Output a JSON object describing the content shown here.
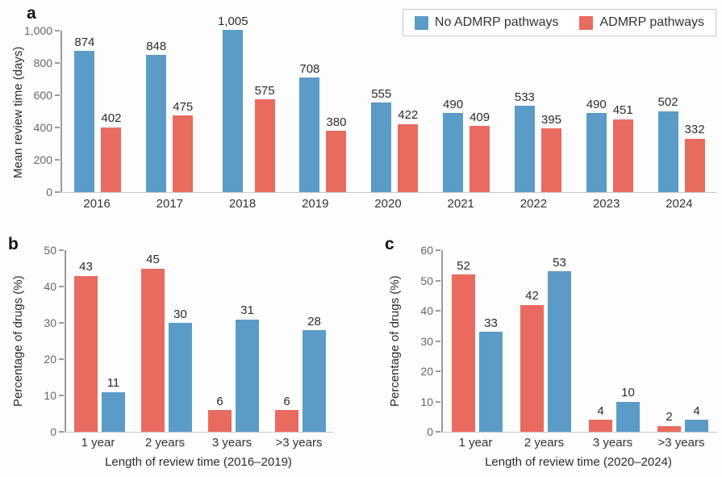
{
  "colors": {
    "no_admrp": "#5b9bc8",
    "admrp": "#e96a5f",
    "axis_line": "#9a9a9a",
    "baseline": "#c9c9c9",
    "tick_text": "#666666",
    "label_text": "#2b2b2b"
  },
  "legend": {
    "items": [
      {
        "label": "No ADMRP pathways",
        "color_key": "no_admrp"
      },
      {
        "label": "ADMRP pathways",
        "color_key": "admrp"
      }
    ]
  },
  "chart_data": [
    {
      "type": "bar",
      "panel": "a",
      "title": "",
      "xlabel": "",
      "ylabel": "Mean review time (days)",
      "ylim": [
        0,
        1000
      ],
      "ytick_step": 200,
      "ytick_labels": [
        "1,000",
        "800",
        "600",
        "400",
        "200",
        "0"
      ],
      "grid": false,
      "legend_position": "top-right",
      "categories": [
        "2016",
        "2017",
        "2018",
        "2019",
        "2020",
        "2021",
        "2022",
        "2023",
        "2024"
      ],
      "series": [
        {
          "name": "No ADMRP pathways",
          "color_key": "no_admrp",
          "values": [
            874,
            848,
            1005,
            708,
            555,
            490,
            533,
            490,
            502
          ]
        },
        {
          "name": "ADMRP pathways",
          "color_key": "admrp",
          "values": [
            402,
            475,
            575,
            380,
            422,
            409,
            395,
            451,
            332
          ]
        }
      ]
    },
    {
      "type": "bar",
      "panel": "b",
      "title": "",
      "xlabel": "Length of review time (2016–2019)",
      "ylabel": "Percentage of drugs (%)",
      "ylim": [
        0,
        50
      ],
      "ytick_step": 10,
      "ytick_labels": [
        "50",
        "40",
        "30",
        "20",
        "10",
        "0"
      ],
      "grid": false,
      "categories": [
        "1 year",
        "2 years",
        "3 years",
        ">3 years"
      ],
      "series": [
        {
          "name": "ADMRP pathways",
          "color_key": "admrp",
          "values": [
            43,
            45,
            6,
            6
          ]
        },
        {
          "name": "No ADMRP pathways",
          "color_key": "no_admrp",
          "values": [
            11,
            30,
            31,
            28
          ]
        }
      ]
    },
    {
      "type": "bar",
      "panel": "c",
      "title": "",
      "xlabel": "Length of review time (2020–2024)",
      "ylabel": "Percentage of drugs (%)",
      "ylim": [
        0,
        60
      ],
      "ytick_step": 10,
      "ytick_labels": [
        "60",
        "50",
        "40",
        "30",
        "20",
        "10",
        "0"
      ],
      "grid": false,
      "categories": [
        "1 year",
        "2 years",
        "3 years",
        ">3 years"
      ],
      "series": [
        {
          "name": "ADMRP pathways",
          "color_key": "admrp",
          "values": [
            52,
            42,
            4,
            2
          ]
        },
        {
          "name": "No ADMRP pathways",
          "color_key": "no_admrp",
          "values": [
            33,
            53,
            10,
            4
          ]
        }
      ]
    }
  ]
}
